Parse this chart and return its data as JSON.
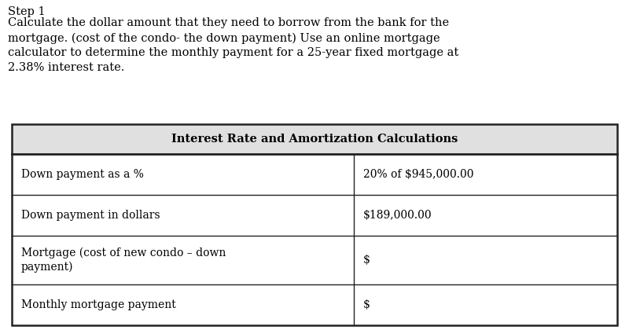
{
  "title_text": "Step 1",
  "body_text": "Calculate the dollar amount that they need to borrow from the bank for the\nmortgage. (cost of the condo- the down payment) Use an online mortgage\ncalculator to determine the monthly payment for a 25-year fixed mortgage at\n2.38% interest rate.",
  "table_title": "Interest Rate and Amortization Calculations",
  "rows": [
    [
      "Down payment as a %",
      "20% of $945,000.00"
    ],
    [
      "Down payment in dollars",
      "$189,000.00"
    ],
    [
      "Mortgage (cost of new condo – down\npayment)",
      "$"
    ],
    [
      "Monthly mortgage payment",
      "$"
    ]
  ],
  "bg_color": "#ffffff",
  "table_header_bg": "#e0e0e0",
  "table_border_color": "#222222",
  "text_color": "#000000",
  "font_size_body": 10.5,
  "font_size_table": 10.0,
  "font_size_header": 10.5
}
